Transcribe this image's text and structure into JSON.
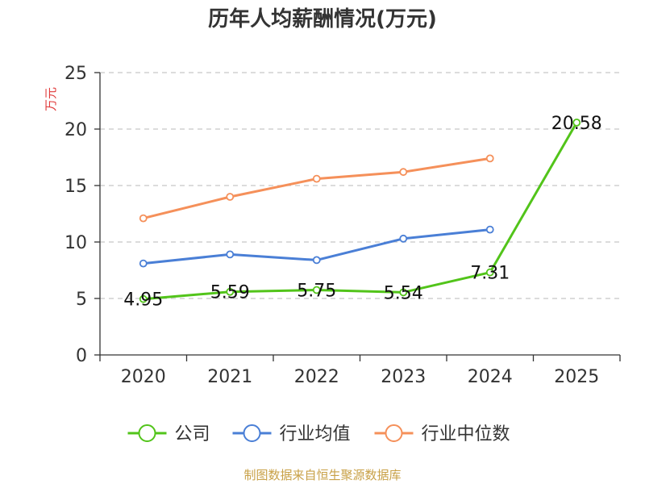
{
  "chart_data": {
    "type": "line",
    "title": "历年人均薪酬情况(万元)",
    "ylabel": "万元",
    "xlabel": "",
    "categories": [
      "2020",
      "2021",
      "2022",
      "2023",
      "2024",
      "2025"
    ],
    "ylim": [
      0,
      25
    ],
    "yticks": [
      0,
      5,
      10,
      15,
      20,
      25
    ],
    "grid": "horizontal-dashed",
    "legend_position": "bottom",
    "series": [
      {
        "name": "公司",
        "color": "#52c41a",
        "values": [
          4.95,
          5.59,
          5.75,
          5.54,
          7.31,
          20.58
        ],
        "show_labels": true,
        "labels": [
          "4.95",
          "5.59",
          "5.75",
          "5.54",
          "7.31",
          "20.58"
        ]
      },
      {
        "name": "行业均值",
        "color": "#4a7fd6",
        "values": [
          8.1,
          8.9,
          8.4,
          10.3,
          11.1,
          null
        ],
        "show_labels": false
      },
      {
        "name": "行业中位数",
        "color": "#f5905a",
        "values": [
          12.1,
          14.0,
          15.6,
          16.2,
          17.4,
          null
        ],
        "show_labels": false
      }
    ]
  },
  "source": "制图数据来自恒生聚源数据库"
}
